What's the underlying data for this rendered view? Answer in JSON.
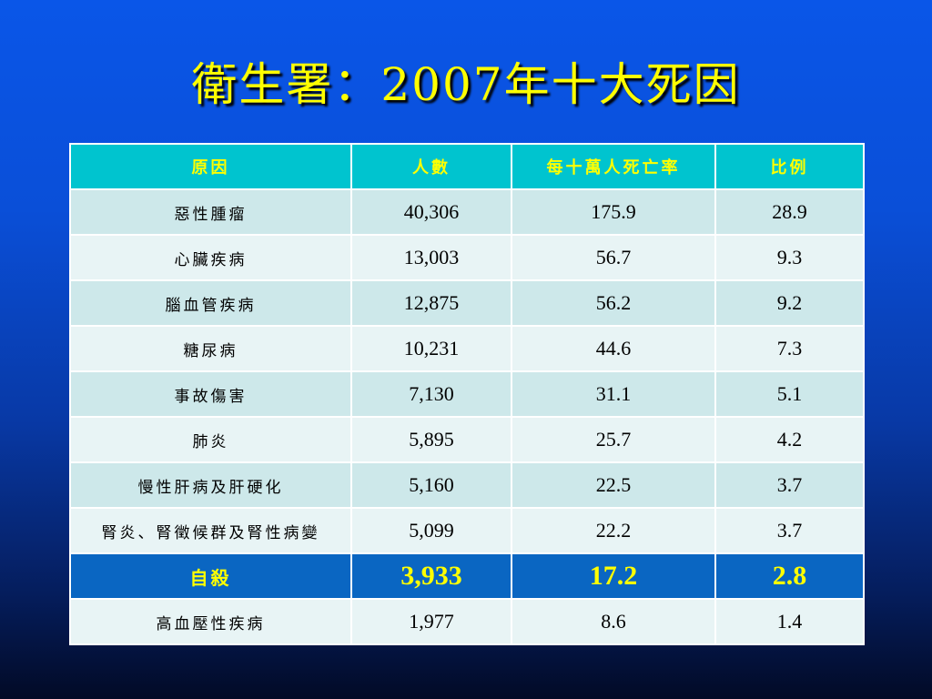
{
  "slide": {
    "title": "衛生署：2007年十大死因"
  },
  "table": {
    "headers": [
      "原因",
      "人數",
      "每十萬人死亡率",
      "比例"
    ],
    "rows": [
      [
        "惡性腫瘤",
        "40,306",
        "175.9",
        "28.9"
      ],
      [
        "心臟疾病",
        "13,003",
        "56.7",
        "9.3"
      ],
      [
        "腦血管疾病",
        "12,875",
        "56.2",
        "9.2"
      ],
      [
        "糖尿病",
        "10,231",
        "44.6",
        "7.3"
      ],
      [
        "事故傷害",
        "7,130",
        "31.1",
        "5.1"
      ],
      [
        "肺炎",
        "5,895",
        "25.7",
        "4.2"
      ],
      [
        "慢性肝病及肝硬化",
        "5,160",
        "22.5",
        "3.7"
      ],
      [
        "腎炎、腎徵候群及腎性病變",
        "5,099",
        "22.2",
        "3.7"
      ],
      [
        "自殺",
        "3,933",
        "17.2",
        "2.8"
      ],
      [
        "高血壓性疾病",
        "1,977",
        "8.6",
        "1.4"
      ]
    ],
    "highlighted_row": 8
  },
  "colors": {
    "title": "#ffff00",
    "header_bg": "#00c4cf",
    "header_text": "#ffff00",
    "row_odd": "#cde8ea",
    "row_even": "#e8f4f5",
    "highlight_bg": "#0a66c2",
    "highlight_text": "#ffff00"
  }
}
